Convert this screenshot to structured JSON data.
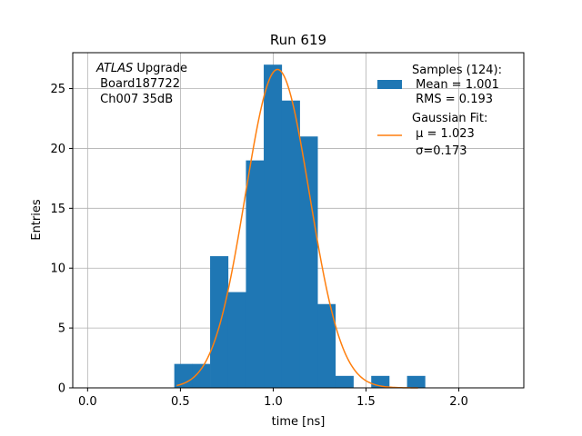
{
  "chart_data": {
    "type": "bar",
    "title": "Run 619",
    "xlabel": "time [ns]",
    "ylabel": "Entries",
    "xlim": [
      -0.08,
      2.35
    ],
    "ylim": [
      0,
      28
    ],
    "xticks": [
      0.0,
      0.5,
      1.0,
      1.5,
      2.0
    ],
    "xtick_labels": [
      "0.0",
      "0.5",
      "1.0",
      "1.5",
      "2.0"
    ],
    "yticks": [
      0,
      5,
      10,
      15,
      20,
      25
    ],
    "ytick_labels": [
      "0",
      "5",
      "10",
      "15",
      "20",
      "25"
    ],
    "grid": true,
    "bin_width": 0.0964,
    "bins_left": [
      0.467,
      0.563,
      0.66,
      0.756,
      0.853,
      0.949,
      1.046,
      1.142,
      1.238,
      1.335,
      1.431,
      1.528,
      1.624,
      1.721
    ],
    "counts": [
      2,
      2,
      11,
      8,
      19,
      27,
      24,
      21,
      7,
      1,
      0,
      1,
      0,
      1
    ],
    "fit": {
      "mu": 1.023,
      "sigma": 0.173,
      "amplitude": 26.6,
      "x_range": [
        0.48,
        1.78
      ]
    },
    "annotation_italic": "ATLAS",
    "annotation_lines": [
      " Upgrade",
      " Board187722",
      " Ch007 35dB"
    ],
    "legend": {
      "position": "top-right",
      "samples_lines": [
        "Samples (124):",
        " Mean = 1.001",
        " RMS = 0.193"
      ],
      "fit_lines": [
        "Gaussian Fit:",
        " μ = 1.023",
        " σ=0.173"
      ]
    },
    "colors": {
      "bars": "#1f77b4",
      "fit": "#ff7f0e",
      "grid": "#b0b0b0"
    }
  }
}
